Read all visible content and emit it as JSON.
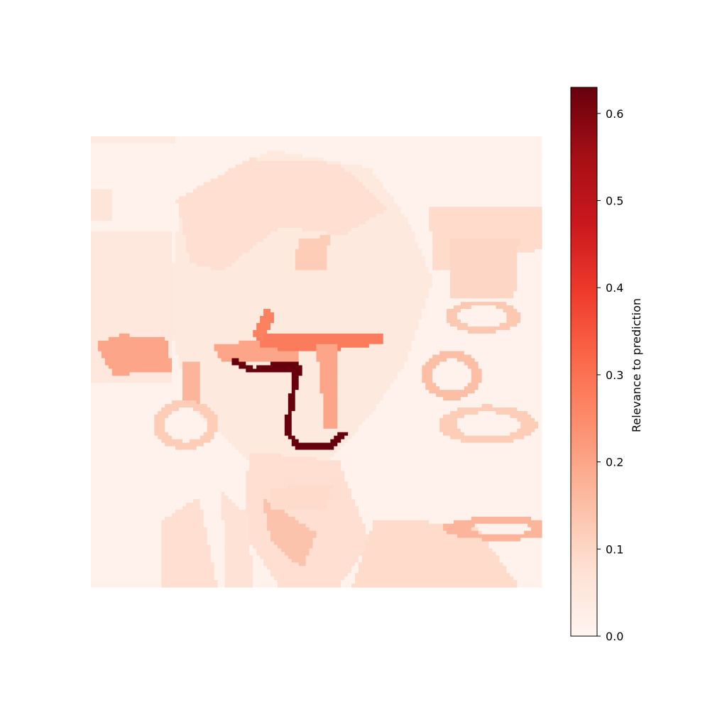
{
  "chart_data": {
    "type": "heatmap",
    "title": "",
    "xlabel": "",
    "ylabel": "",
    "axes_visible": false,
    "cmap": "Reds",
    "colormap_stops": [
      "#fff5f0",
      "#fee0d2",
      "#fcbba1",
      "#fc9272",
      "#fb6a4a",
      "#ef3b2c",
      "#cb181d",
      "#a50f15",
      "#67000d"
    ],
    "vmin": 0.0,
    "vmax": 0.63,
    "grid_rows": 128,
    "grid_cols": 128,
    "background_value": 0.01,
    "regions": [
      {
        "kind": "rect",
        "x0": 0.0,
        "y0": 0.0,
        "x1": 1.0,
        "y1": 1.0,
        "value": 0.01
      },
      {
        "kind": "blob",
        "points": [
          [
            0.2,
            0.14
          ],
          [
            0.4,
            0.03
          ],
          [
            0.62,
            0.07
          ],
          [
            0.7,
            0.18
          ],
          [
            0.76,
            0.32
          ],
          [
            0.7,
            0.5
          ],
          [
            0.62,
            0.62
          ],
          [
            0.5,
            0.75
          ],
          [
            0.35,
            0.72
          ],
          [
            0.22,
            0.6
          ],
          [
            0.17,
            0.4
          ]
        ],
        "value": 0.045
      },
      {
        "kind": "blob",
        "points": [
          [
            0.19,
            0.14
          ],
          [
            0.35,
            0.05
          ],
          [
            0.55,
            0.06
          ],
          [
            0.66,
            0.16
          ],
          [
            0.56,
            0.22
          ],
          [
            0.42,
            0.2
          ],
          [
            0.29,
            0.3
          ],
          [
            0.22,
            0.28
          ]
        ],
        "value": 0.08
      },
      {
        "kind": "blob",
        "points": [
          [
            0.0,
            0.21
          ],
          [
            0.18,
            0.21
          ],
          [
            0.18,
            0.55
          ],
          [
            0.0,
            0.55
          ]
        ],
        "value": 0.05
      },
      {
        "kind": "blob",
        "points": [
          [
            0.0,
            0.0
          ],
          [
            0.19,
            0.0
          ],
          [
            0.19,
            0.015
          ],
          [
            0.0,
            0.015
          ]
        ],
        "value": 0.04
      },
      {
        "kind": "blob",
        "points": [
          [
            0.75,
            0.16
          ],
          [
            1.0,
            0.16
          ],
          [
            1.0,
            0.25
          ],
          [
            0.76,
            0.3
          ]
        ],
        "value": 0.09
      },
      {
        "kind": "blob",
        "points": [
          [
            0.8,
            0.23
          ],
          [
            0.95,
            0.23
          ],
          [
            0.94,
            0.36
          ],
          [
            0.8,
            0.36
          ]
        ],
        "value": 0.1
      },
      {
        "kind": "blob",
        "points": [
          [
            0.0,
            0.12
          ],
          [
            0.05,
            0.12
          ],
          [
            0.05,
            0.19
          ],
          [
            0.0,
            0.19
          ]
        ],
        "value": 0.06
      },
      {
        "kind": "blob",
        "points": [
          [
            0.35,
            0.7
          ],
          [
            0.55,
            0.72
          ],
          [
            0.62,
            0.9
          ],
          [
            0.55,
            1.0
          ],
          [
            0.42,
            1.0
          ],
          [
            0.34,
            0.88
          ]
        ],
        "value": 0.08
      },
      {
        "kind": "blob",
        "points": [
          [
            0.38,
            0.8
          ],
          [
            0.5,
            0.88
          ],
          [
            0.47,
            0.96
          ],
          [
            0.4,
            0.9
          ]
        ],
        "value": 0.14
      },
      {
        "kind": "blob",
        "points": [
          [
            0.63,
            0.85
          ],
          [
            0.85,
            0.86
          ],
          [
            0.95,
            1.0
          ],
          [
            0.58,
            1.0
          ]
        ],
        "value": 0.09
      },
      {
        "kind": "blob",
        "points": [
          [
            0.16,
            0.85
          ],
          [
            0.24,
            0.8
          ],
          [
            0.28,
            1.0
          ],
          [
            0.16,
            1.0
          ]
        ],
        "value": 0.08
      },
      {
        "kind": "blob",
        "points": [
          [
            0.29,
            0.79
          ],
          [
            0.35,
            0.84
          ],
          [
            0.36,
            1.0
          ],
          [
            0.3,
            1.0
          ]
        ],
        "value": 0.07
      },
      {
        "kind": "blob",
        "points": [
          [
            0.01,
            0.46
          ],
          [
            0.07,
            0.44
          ],
          [
            0.17,
            0.45
          ],
          [
            0.18,
            0.52
          ],
          [
            0.05,
            0.53
          ]
        ],
        "value": 0.2
      },
      {
        "kind": "blob",
        "points": [
          [
            0.2,
            0.5
          ],
          [
            0.24,
            0.5
          ],
          [
            0.24,
            0.59
          ],
          [
            0.2,
            0.59
          ]
        ],
        "value": 0.17
      },
      {
        "kind": "blob",
        "points": [
          [
            0.27,
            0.46
          ],
          [
            0.46,
            0.45
          ],
          [
            0.46,
            0.5
          ],
          [
            0.29,
            0.5
          ]
        ],
        "value": 0.2
      },
      {
        "kind": "blob",
        "points": [
          [
            0.36,
            0.44
          ],
          [
            0.65,
            0.44
          ],
          [
            0.65,
            0.46
          ],
          [
            0.5,
            0.48
          ],
          [
            0.38,
            0.47
          ]
        ],
        "value": 0.28
      },
      {
        "kind": "blob",
        "points": [
          [
            0.5,
            0.46
          ],
          [
            0.55,
            0.46
          ],
          [
            0.55,
            0.65
          ],
          [
            0.52,
            0.65
          ]
        ],
        "value": 0.2
      },
      {
        "kind": "blob",
        "points": [
          [
            0.39,
            0.38
          ],
          [
            0.41,
            0.4
          ],
          [
            0.38,
            0.45
          ],
          [
            0.36,
            0.44
          ]
        ],
        "value": 0.27
      },
      {
        "kind": "blob",
        "points": [
          [
            0.46,
            0.23
          ],
          [
            0.53,
            0.22
          ],
          [
            0.52,
            0.3
          ],
          [
            0.45,
            0.3
          ]
        ],
        "value": 0.12
      },
      {
        "kind": "blob",
        "points": [
          [
            0.4,
            0.78
          ],
          [
            0.54,
            0.77
          ],
          [
            0.52,
            0.83
          ],
          [
            0.4,
            0.83
          ]
        ],
        "value": 0.09
      },
      {
        "kind": "ring",
        "cx": 0.21,
        "cy": 0.64,
        "rx": 0.06,
        "ry": 0.045,
        "width": 0.018,
        "value": 0.12
      },
      {
        "kind": "ring",
        "cx": 0.8,
        "cy": 0.53,
        "rx": 0.055,
        "ry": 0.045,
        "width": 0.018,
        "value": 0.15
      },
      {
        "kind": "ring",
        "cx": 0.88,
        "cy": 0.64,
        "rx": 0.09,
        "ry": 0.035,
        "width": 0.015,
        "value": 0.12
      },
      {
        "kind": "ring",
        "cx": 0.87,
        "cy": 0.4,
        "rx": 0.07,
        "ry": 0.03,
        "width": 0.012,
        "value": 0.13
      },
      {
        "kind": "ring",
        "cx": 0.91,
        "cy": 0.87,
        "rx": 0.1,
        "ry": 0.02,
        "width": 0.012,
        "value": 0.17
      },
      {
        "kind": "polyline",
        "points": [
          [
            0.32,
            0.5
          ],
          [
            0.36,
            0.52
          ],
          [
            0.43,
            0.51
          ],
          [
            0.46,
            0.51
          ],
          [
            0.45,
            0.56
          ],
          [
            0.44,
            0.62
          ],
          [
            0.44,
            0.66
          ],
          [
            0.46,
            0.69
          ],
          [
            0.53,
            0.69
          ],
          [
            0.56,
            0.66
          ]
        ],
        "width": 0.014,
        "value": 0.63
      },
      {
        "kind": "polyline",
        "points": [
          [
            0.41,
            0.51
          ],
          [
            0.46,
            0.52
          ]
        ],
        "width": 0.02,
        "value": 0.63
      }
    ]
  },
  "colorbar": {
    "label": "Relevance to prediction",
    "ticks": [
      0.0,
      0.1,
      0.2,
      0.3,
      0.4,
      0.5,
      0.6
    ],
    "tick_labels": [
      "0.0",
      "0.1",
      "0.2",
      "0.3",
      "0.4",
      "0.5",
      "0.6"
    ]
  }
}
